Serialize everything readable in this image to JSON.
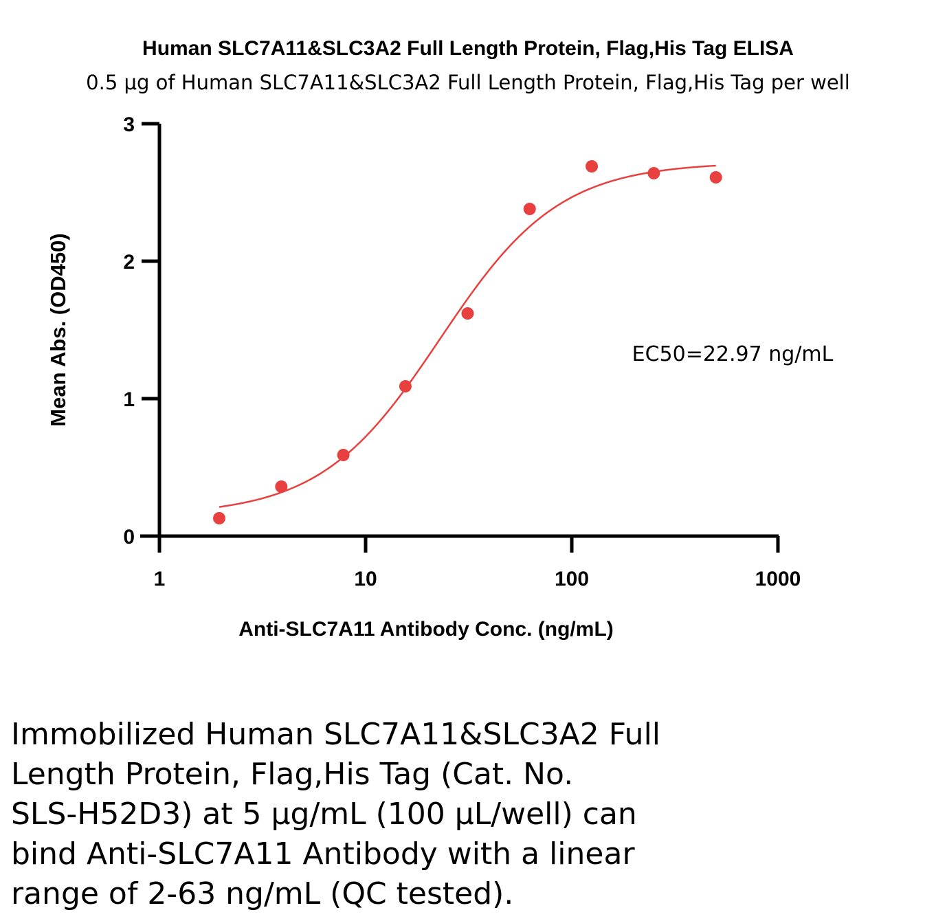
{
  "chart_data": {
    "type": "scatter",
    "title": "Human SLC7A11&SLC3A2 Full Length Protein, Flag,His Tag ELISA",
    "subtitle": "0.5 μg of Human SLC7A11&SLC3A2 Full Length Protein, Flag,His Tag per well",
    "xlabel": "Anti-SLC7A11 Antibody Conc. (ng/mL)",
    "ylabel": "Mean Abs. (OD450)",
    "xscale": "log",
    "xlim": [
      1,
      1000
    ],
    "ylim": [
      0,
      3
    ],
    "xticks": [
      "1",
      "10",
      "100",
      "1000"
    ],
    "yticks": [
      "0",
      "1",
      "2",
      "3"
    ],
    "grid": false,
    "annotation": "EC50=22.97 ng/mL",
    "color": "#e8403f",
    "points": {
      "x": [
        1.95,
        3.9,
        7.8,
        15.6,
        31.25,
        62.5,
        125,
        250,
        500
      ],
      "y": [
        0.13,
        0.36,
        0.59,
        1.09,
        1.62,
        2.38,
        2.69,
        2.64,
        2.61
      ]
    },
    "fit": {
      "model": "4PL",
      "bottom": 0.15,
      "top": 2.72,
      "ec50": 22.97,
      "hill": 1.5
    }
  },
  "caption": [
    "Immobilized Human SLC7A11&SLC3A2 Full",
    "Length Protein, Flag,His Tag (Cat. No.",
    "SLS-H52D3) at 5 μg/mL (100 μL/well) can",
    "bind Anti-SLC7A11 Antibody with a linear",
    "range of 2-63 ng/mL (QC tested)."
  ]
}
